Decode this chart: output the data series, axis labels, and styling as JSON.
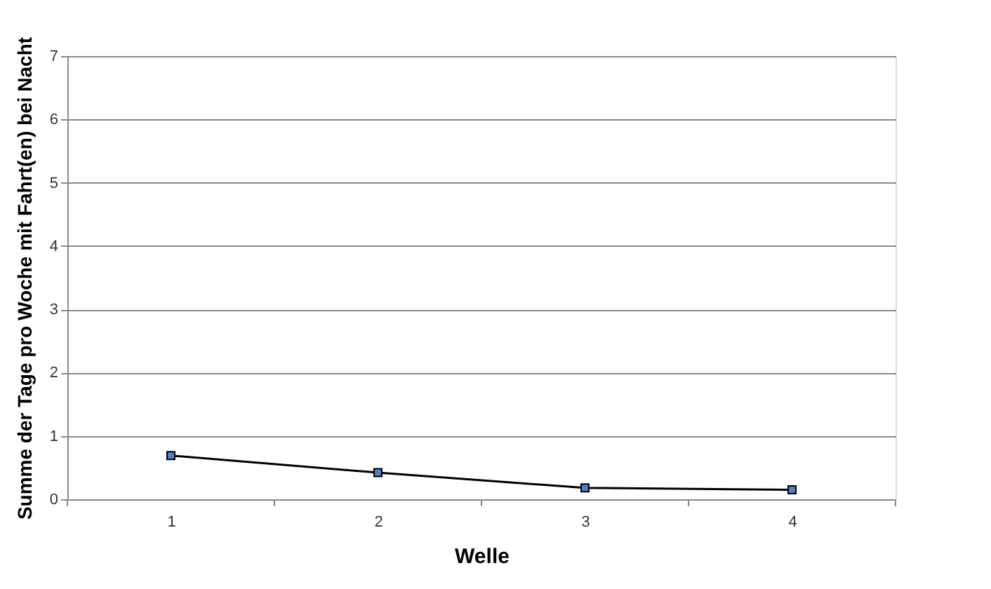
{
  "chart_data": {
    "type": "line",
    "xlabel": "Welle",
    "ylabel": "Summe der Tage pro Woche mit Fahrt(en) bei Nacht",
    "categories": [
      "1",
      "2",
      "3",
      "4"
    ],
    "series": [
      {
        "color": "#000000",
        "values": [
          0.69,
          0.42,
          0.18,
          0.15
        ]
      }
    ],
    "ylim": [
      0,
      7
    ],
    "yticks": [
      0,
      1,
      2,
      3,
      4,
      5,
      6,
      7
    ],
    "grid": "y",
    "marker": "square",
    "line_style": "solid"
  }
}
